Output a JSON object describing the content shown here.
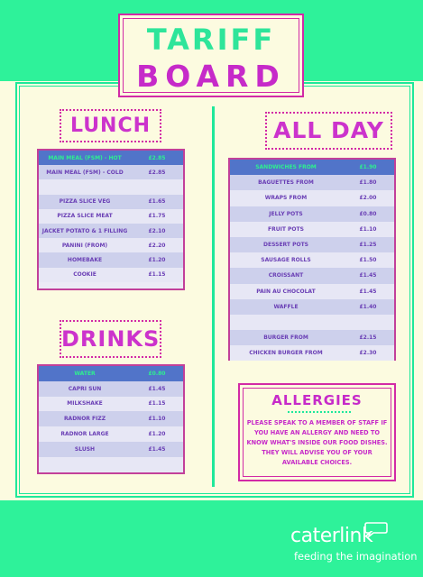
{
  "title": {
    "line1": "TARIFF",
    "line2": "BOARD"
  },
  "lunch": {
    "label": "LUNCH",
    "rows": [
      {
        "item": "MAIN MEAL (FSM) - HOT",
        "price": "£2.85",
        "header": true
      },
      {
        "item": "MAIN MEAL (FSM) - COLD",
        "price": "£2.85"
      },
      {
        "item": "",
        "price": ""
      },
      {
        "item": "PIZZA SLICE VEG",
        "price": "£1.65"
      },
      {
        "item": "PIZZA SLICE MEAT",
        "price": "£1.75"
      },
      {
        "item": "JACKET POTATO & 1 FILLING",
        "price": "£2.10"
      },
      {
        "item": "PANINI (FROM)",
        "price": "£2.20"
      },
      {
        "item": "HOMEBAKE",
        "price": "£1.20"
      },
      {
        "item": "COOKIE",
        "price": "£1.15"
      }
    ]
  },
  "all_day": {
    "label": "ALL DAY",
    "rows": [
      {
        "item": "SANDWICHES FROM",
        "price": "£1.90",
        "header": true
      },
      {
        "item": "BAGUETTES FROM",
        "price": "£1.80"
      },
      {
        "item": "WRAPS FROM",
        "price": "£2.00"
      },
      {
        "item": "JELLY POTS",
        "price": "£0.80"
      },
      {
        "item": "FRUIT POTS",
        "price": "£1.10"
      },
      {
        "item": "DESSERT POTS",
        "price": "£1.25"
      },
      {
        "item": "SAUSAGE ROLLS",
        "price": "£1.50"
      },
      {
        "item": "CROISSANT",
        "price": "£1.45"
      },
      {
        "item": "PAIN AU CHOCOLAT",
        "price": "£1.45"
      },
      {
        "item": "WAFFLE",
        "price": "£1.40"
      },
      {
        "item": "",
        "price": ""
      },
      {
        "item": "BURGER FROM",
        "price": "£2.15"
      },
      {
        "item": "CHICKEN BURGER FROM",
        "price": "£2.30"
      }
    ]
  },
  "drinks": {
    "label": "DRINKS",
    "rows": [
      {
        "item": "WATER",
        "price": "£0.80",
        "header": true
      },
      {
        "item": "CAPRI SUN",
        "price": "£1.45"
      },
      {
        "item": "MILKSHAKE",
        "price": "£1.15"
      },
      {
        "item": "RADNOR FIZZ",
        "price": "£1.10"
      },
      {
        "item": "RADNOR LARGE",
        "price": "£1.20"
      },
      {
        "item": "SLUSH",
        "price": "£1.45"
      },
      {
        "item": "",
        "price": ""
      }
    ]
  },
  "allergies": {
    "title": "ALLERGIES",
    "text": "Please speak to a member of staff if you have an allergy and need to know what's inside our food dishes. They will advise you of your available choices."
  },
  "logo": {
    "name": "caterlink",
    "tagline": "feeding the imagination"
  },
  "colors": {
    "green": "#2ef29a",
    "cream": "#fcfbe0",
    "magenta": "#c62ac9",
    "header_blue": "#5174c9"
  }
}
